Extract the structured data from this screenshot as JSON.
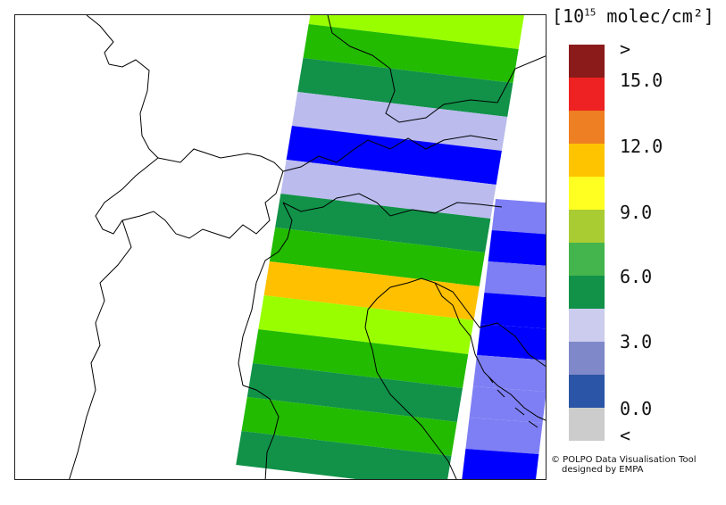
{
  "legend": {
    "title_prefix": "[10",
    "title_exponent": "15",
    "title_suffix": " molec/cm²]",
    "swatches": [
      {
        "color": "#8b1a1a"
      },
      {
        "color": "#ee2222"
      },
      {
        "color": "#ee7f22"
      },
      {
        "color": "#ffc400"
      },
      {
        "color": "#ffff22"
      },
      {
        "color": "#aacc33"
      },
      {
        "color": "#44b44c"
      },
      {
        "color": "#119248"
      },
      {
        "color": "#ccccee"
      },
      {
        "color": "#7f88c8"
      },
      {
        "color": "#2b55a6"
      },
      {
        "color": "#cccccc"
      }
    ],
    "ticks": [
      ">",
      "15.0",
      "12.0",
      "9.0",
      "6.0",
      "3.0",
      "0.0",
      "<"
    ]
  },
  "map": {
    "stripe_colors": {
      "lime": "#99ff00",
      "green": "#22bb00",
      "dark_green": "#119248",
      "lavender": "#bbbbee",
      "blue": "#0000ff",
      "periwinkle": "#7f7ff5",
      "orange": "#ffc000"
    },
    "main_swath_stripes": [
      "lime",
      "green",
      "dark_green",
      "lavender",
      "blue",
      "lavender",
      "dark_green",
      "green",
      "orange",
      "lime",
      "green",
      "dark_green",
      "green",
      "dark_green"
    ],
    "east_swath_stripes": [
      "periwinkle",
      "blue",
      "periwinkle",
      "blue",
      "blue",
      "periwinkle",
      "periwinkle",
      "periwinkle",
      "blue"
    ]
  },
  "credit": {
    "line1": "© POLPO Data Visualisation Tool",
    "line2": "designed by EMPA"
  }
}
